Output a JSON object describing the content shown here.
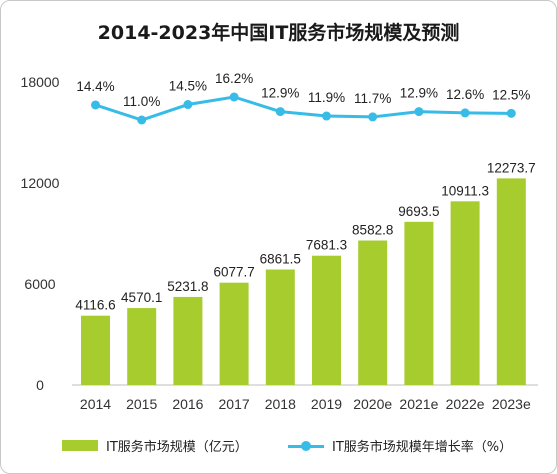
{
  "title": "2014-2023年中国IT服务市场规模及预测",
  "chart_data": {
    "type": "bar",
    "categories": [
      "2014",
      "2015",
      "2016",
      "2017",
      "2018",
      "2019",
      "2020e",
      "2021e",
      "2022e",
      "2023e"
    ],
    "series": [
      {
        "name": "IT服务市场规模（亿元）",
        "type": "bar",
        "color": "#a6cc2e",
        "values": [
          4116.6,
          4570.1,
          5231.8,
          6077.7,
          6861.5,
          7681.3,
          8582.8,
          9693.5,
          10911.3,
          12273.7
        ],
        "labels": [
          "4116.6",
          "4570.1",
          "5231.8",
          "6077.7",
          "6861.5",
          "7681.3",
          "8582.8",
          "9693.5",
          "10911.3",
          "12273.7"
        ]
      },
      {
        "name": "IT服务市场规模年增长率（%）",
        "type": "line",
        "color": "#37bce7",
        "values": [
          14.4,
          11.0,
          14.5,
          16.2,
          12.9,
          11.9,
          11.7,
          12.9,
          12.6,
          12.5
        ],
        "labels": [
          "14.4%",
          "11.0%",
          "14.5%",
          "16.2%",
          "12.9%",
          "11.9%",
          "11.7%",
          "12.9%",
          "12.6%",
          "12.5%"
        ]
      }
    ],
    "yticks": [
      "0",
      "6000",
      "12000",
      "18000"
    ],
    "ylim": [
      0,
      18000
    ],
    "grid": false,
    "legend": "bottom"
  }
}
